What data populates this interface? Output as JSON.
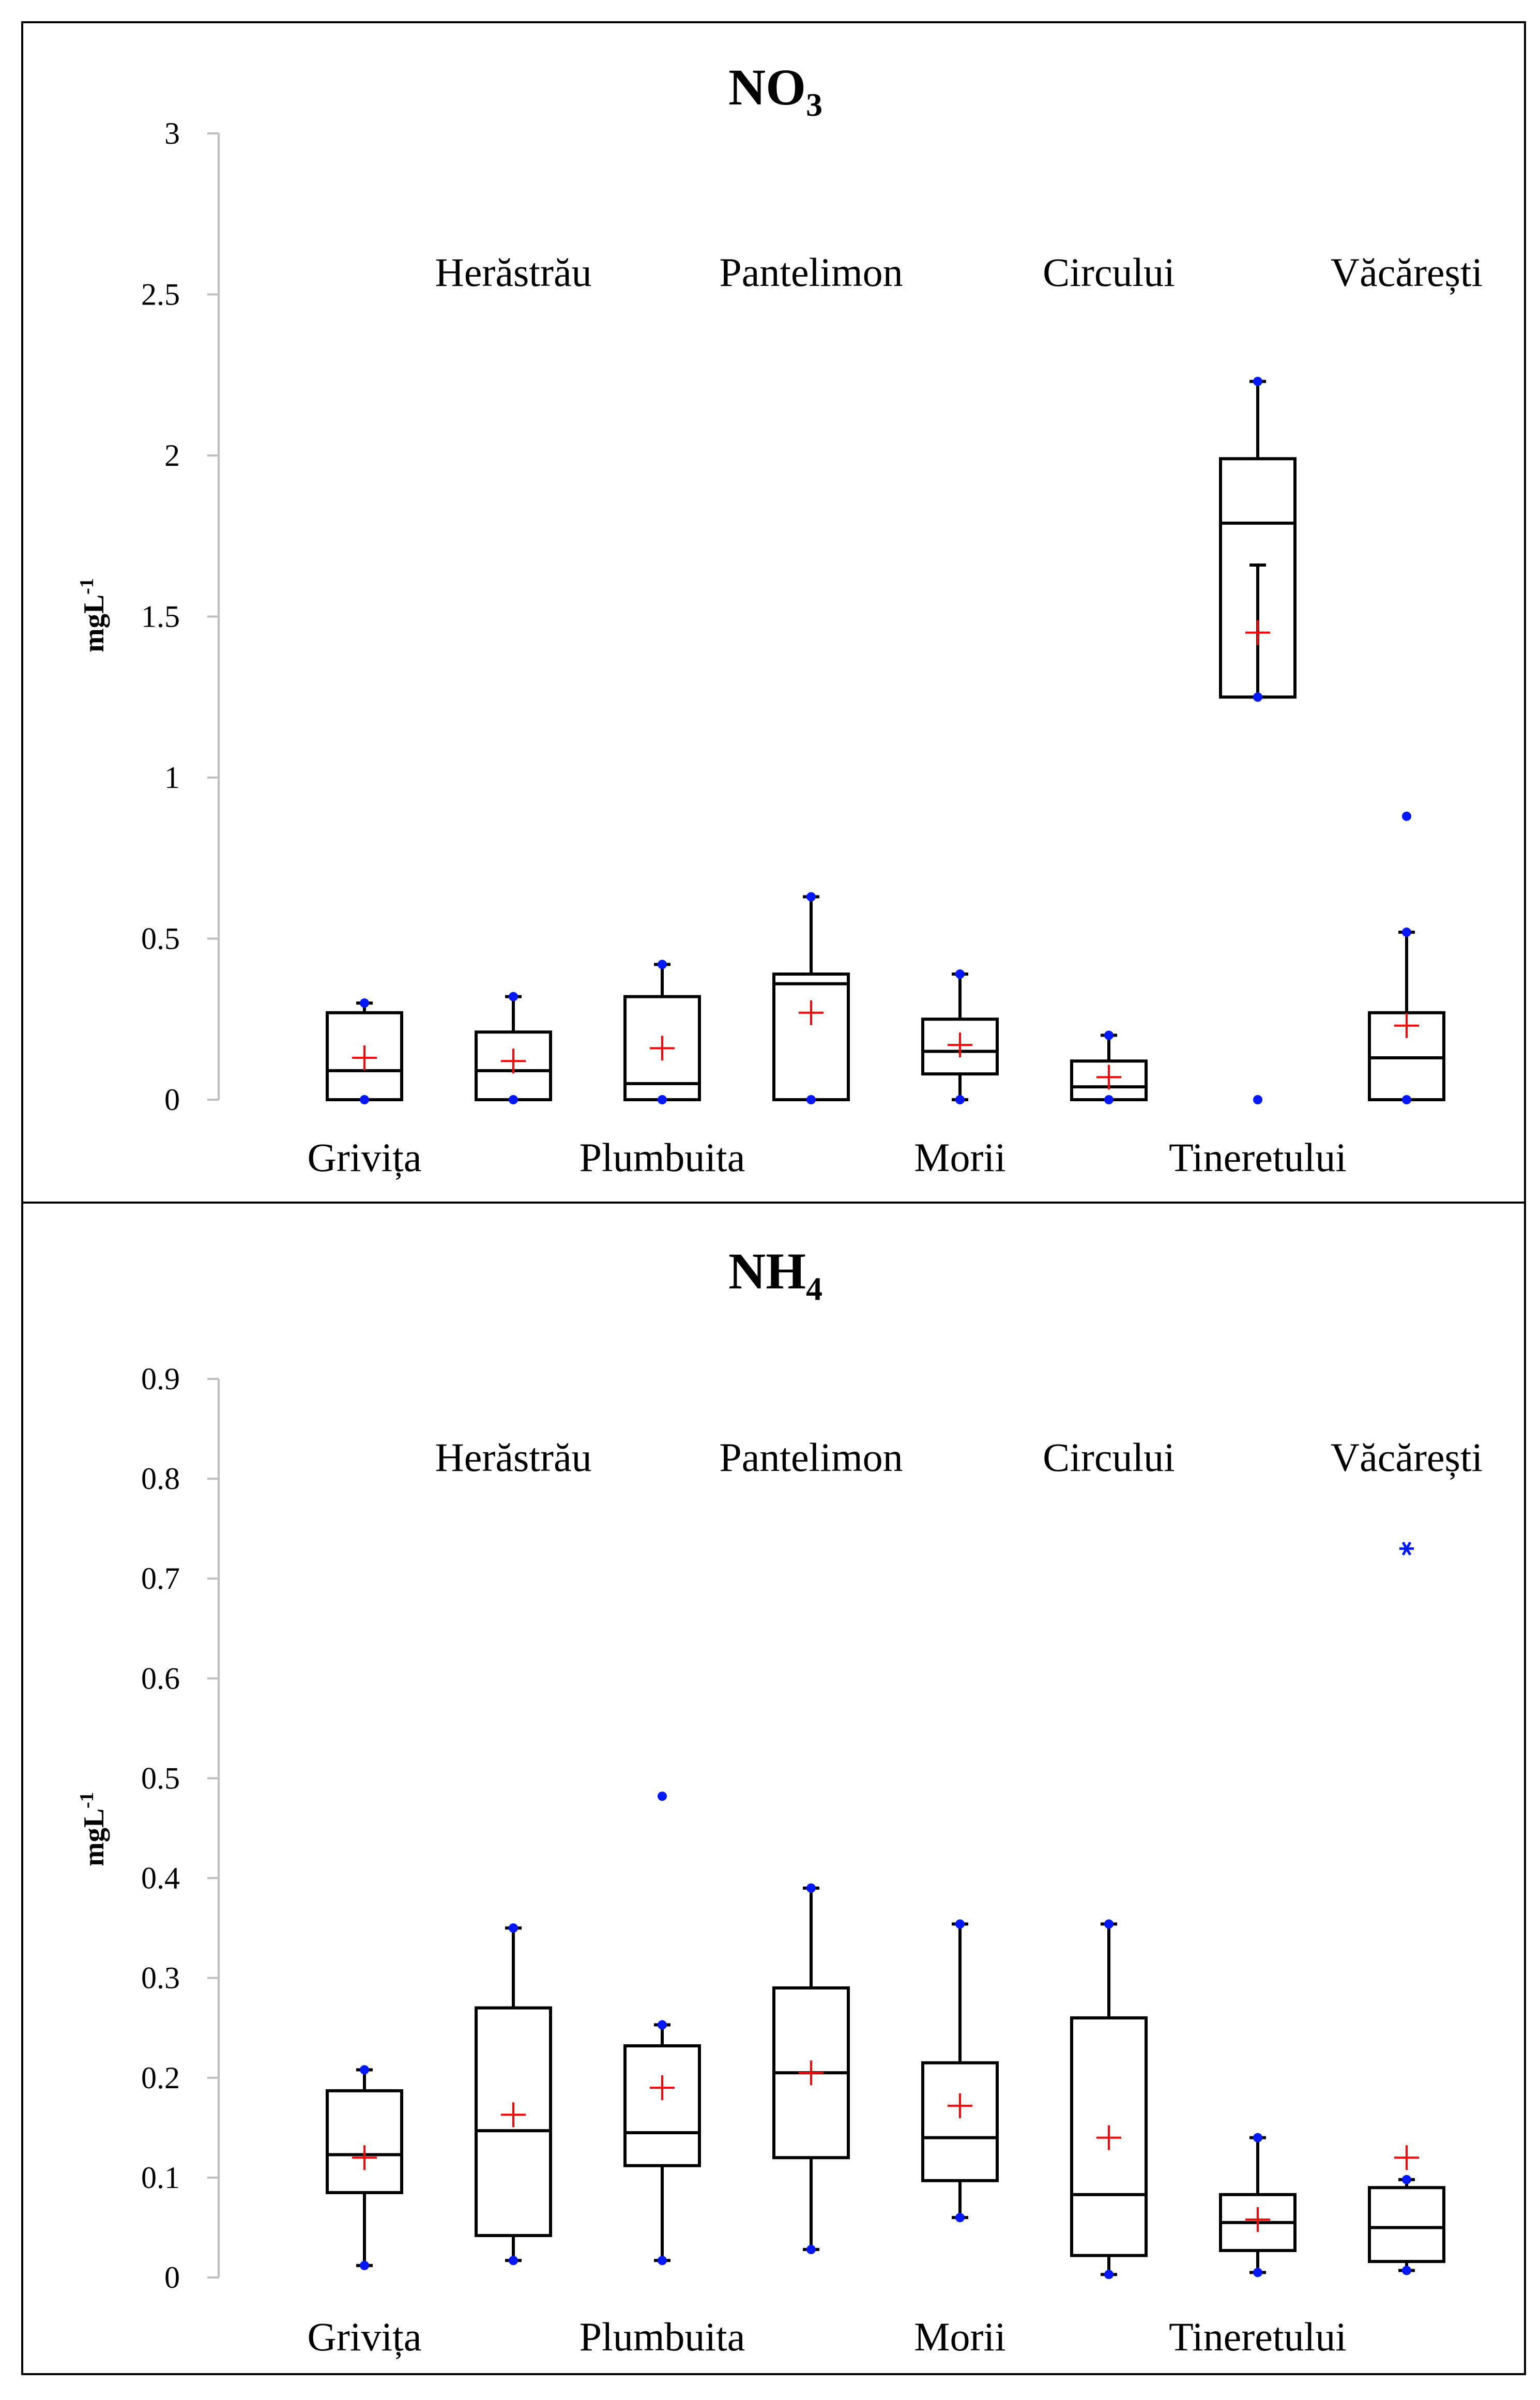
{
  "colors": {
    "box": "#000000",
    "point": "#0018ff",
    "mean": "#ff0000",
    "axis": "#bfbfbf",
    "frame": "#000000"
  },
  "chart_data": [
    {
      "type": "box",
      "title": "NO",
      "title_sub": "3",
      "ylabel": "mgL",
      "ylabel_sup": "-1",
      "ylim": [
        0,
        3
      ],
      "yticks": [
        "0",
        "0.5",
        "1",
        "1.5",
        "2",
        "2.5",
        "3"
      ],
      "ytick_values": [
        0,
        0.5,
        1,
        1.5,
        2,
        2.5,
        3
      ],
      "categories": [
        "Grivița",
        "Herăstrău",
        "Plumbuita",
        "Pantelimon",
        "Morii",
        "Circului",
        "Tineretului",
        "Văcărești"
      ],
      "bottom_labels": [
        "Grivița",
        "Plumbuita",
        "Morii",
        "Tineretului"
      ],
      "top_labels": [
        "Herăstrău",
        "Pantelimon",
        "Circului",
        "Văcărești"
      ],
      "boxes": [
        {
          "name": "Grivița",
          "min": 0,
          "q1": 0,
          "median": 0.09,
          "q3": 0.27,
          "max": 0.3,
          "mean": 0.13,
          "outliers": []
        },
        {
          "name": "Herăstrău",
          "min": 0,
          "q1": 0,
          "median": 0.09,
          "q3": 0.21,
          "max": 0.32,
          "mean": 0.12,
          "outliers": []
        },
        {
          "name": "Plumbuita",
          "min": 0,
          "q1": 0,
          "median": 0.05,
          "q3": 0.32,
          "max": 0.42,
          "mean": 0.16,
          "outliers": []
        },
        {
          "name": "Pantelimon",
          "min": 0,
          "q1": 0,
          "median": 0.36,
          "q3": 0.39,
          "max": 0.63,
          "mean": 0.27,
          "outliers": []
        },
        {
          "name": "Morii",
          "min": 0,
          "q1": 0.08,
          "median": 0.15,
          "q3": 0.25,
          "max": 0.39,
          "mean": 0.17,
          "outliers": []
        },
        {
          "name": "Circului",
          "min": 0,
          "q1": 0,
          "median": 0.04,
          "q3": 0.12,
          "max": 0.2,
          "mean": 0.07,
          "outliers": []
        },
        {
          "name": "Tineretului",
          "min": 1.25,
          "q1": 1.25,
          "median": 1.79,
          "q3": 1.99,
          "max": 2.23,
          "mean": 1.45,
          "outliers": [
            0
          ],
          "inner_whisker": 1.66
        },
        {
          "name": "Văcărești",
          "min": 0,
          "q1": 0,
          "median": 0.13,
          "q3": 0.27,
          "max": 0.52,
          "mean": 0.23,
          "outliers": [
            0.88
          ]
        }
      ]
    },
    {
      "type": "box",
      "title": "NH",
      "title_sub": "4",
      "ylabel": "mgL",
      "ylabel_sup": "-1",
      "ylim": [
        0,
        0.9
      ],
      "yticks": [
        "0",
        "0.1",
        "0.2",
        "0.3",
        "0.4",
        "0.5",
        "0.6",
        "0.7",
        "0.8",
        "0.9"
      ],
      "ytick_values": [
        0,
        0.1,
        0.2,
        0.3,
        0.4,
        0.5,
        0.6,
        0.7,
        0.8,
        0.9
      ],
      "categories": [
        "Grivița",
        "Herăstrău",
        "Plumbuita",
        "Pantelimon",
        "Morii",
        "Circului",
        "Tineretului",
        "Văcărești"
      ],
      "bottom_labels": [
        "Grivița",
        "Plumbuita",
        "Morii",
        "Tineretului"
      ],
      "top_labels": [
        "Herăstrău",
        "Pantelimon",
        "Circului",
        "Văcărești"
      ],
      "boxes": [
        {
          "name": "Grivița",
          "min": 0.012,
          "q1": 0.085,
          "median": 0.123,
          "q3": 0.187,
          "max": 0.208,
          "mean": 0.12,
          "outliers": []
        },
        {
          "name": "Herăstrău",
          "min": 0.017,
          "q1": 0.042,
          "median": 0.147,
          "q3": 0.27,
          "max": 0.35,
          "mean": 0.163,
          "outliers": []
        },
        {
          "name": "Plumbuita",
          "min": 0.017,
          "q1": 0.112,
          "median": 0.145,
          "q3": 0.232,
          "max": 0.253,
          "mean": 0.19,
          "outliers": [
            0.482
          ]
        },
        {
          "name": "Pantelimon",
          "min": 0.028,
          "q1": 0.12,
          "median": 0.205,
          "q3": 0.29,
          "max": 0.39,
          "mean": 0.205,
          "outliers": []
        },
        {
          "name": "Morii",
          "min": 0.06,
          "q1": 0.097,
          "median": 0.14,
          "q3": 0.215,
          "max": 0.354,
          "mean": 0.172,
          "outliers": []
        },
        {
          "name": "Circului",
          "min": 0.003,
          "q1": 0.022,
          "median": 0.083,
          "q3": 0.26,
          "max": 0.354,
          "mean": 0.14,
          "outliers": []
        },
        {
          "name": "Tineretului",
          "min": 0.005,
          "q1": 0.027,
          "median": 0.055,
          "q3": 0.083,
          "max": 0.14,
          "mean": 0.058,
          "outliers": []
        },
        {
          "name": "Văcărești",
          "min": 0.007,
          "q1": 0.016,
          "median": 0.05,
          "q3": 0.09,
          "max": 0.098,
          "mean": 0.12,
          "outliers": [
            0.73
          ],
          "outlier_marker": "star"
        }
      ]
    }
  ]
}
